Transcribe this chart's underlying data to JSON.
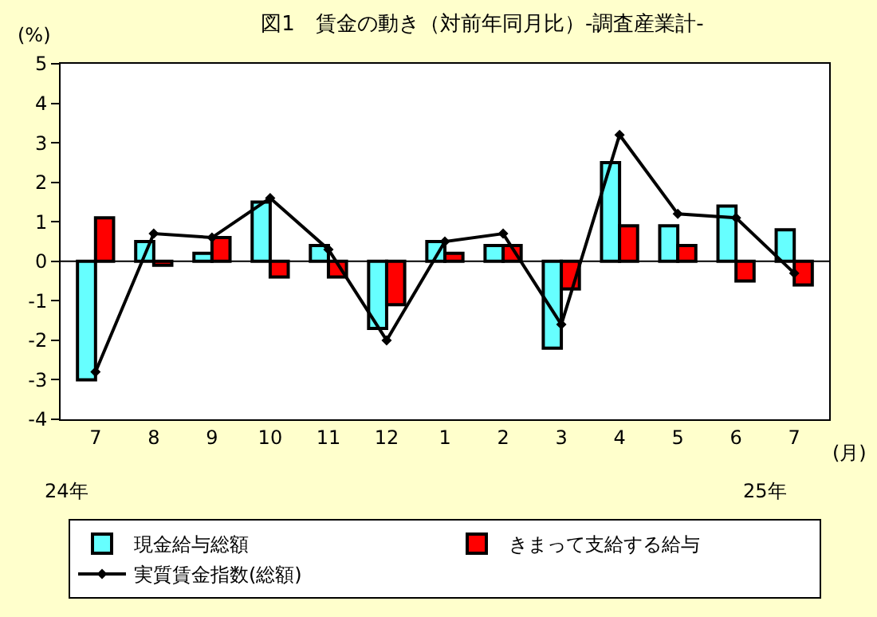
{
  "chart_data": {
    "type": "bar",
    "title": "図1　賃金の動き（対前年同月比）-調査産業計-",
    "ylabel": "(%)",
    "xlabel": "(月)",
    "categories": [
      "7",
      "8",
      "9",
      "10",
      "11",
      "12",
      "1",
      "2",
      "3",
      "4",
      "5",
      "6",
      "7"
    ],
    "series": [
      {
        "name": "現金給与総額",
        "color": "#66ffff",
        "values": [
          -3.0,
          0.5,
          0.2,
          1.5,
          0.4,
          -1.7,
          0.5,
          0.4,
          -2.2,
          2.5,
          0.9,
          1.4,
          0.8
        ]
      },
      {
        "name": "きまって支給する給与",
        "color": "#ff0000",
        "values": [
          1.1,
          -0.1,
          0.6,
          -0.4,
          -0.4,
          -1.1,
          0.2,
          0.4,
          -0.7,
          0.9,
          0.4,
          -0.5,
          -0.6
        ]
      },
      {
        "name": "実質賃金指数(総額)",
        "type": "line",
        "color": "#000000",
        "marker": "diamond",
        "values": [
          -2.8,
          0.7,
          0.6,
          1.6,
          0.3,
          -2.0,
          0.5,
          0.7,
          -1.6,
          3.2,
          1.2,
          1.1,
          -0.3
        ]
      }
    ],
    "annotations": [
      "24年",
      "25年"
    ],
    "ylim": [
      -4,
      5
    ],
    "yticks": [
      -4,
      -3,
      -2,
      -1,
      0,
      1,
      2,
      3,
      4,
      5
    ],
    "ref_lines": [
      {
        "axis": "y",
        "value": 0,
        "color": "#000000"
      }
    ],
    "grid": false,
    "legend": "bottom"
  }
}
